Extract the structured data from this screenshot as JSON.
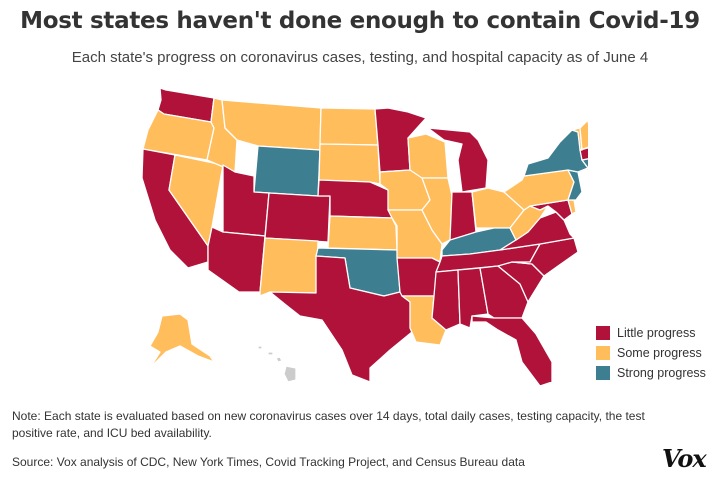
{
  "title": "Most states haven't done enough to contain Covid-19",
  "subtitle": "Each state's progress on coronavirus cases, testing, and hospital capacity as of June 4",
  "legend": [
    {
      "key": "little",
      "label": "Little progress",
      "color": "#b0123a"
    },
    {
      "key": "some",
      "label": "Some progress",
      "color": "#ffbd5c"
    },
    {
      "key": "strong",
      "label": "Strong progress",
      "color": "#3d7f91"
    }
  ],
  "colors": {
    "little": "#b0123a",
    "some": "#ffbd5c",
    "strong": "#3d7f91",
    "nodata": "#cccccc"
  },
  "states": {
    "WA": "little",
    "OR": "some",
    "CA": "little",
    "NV": "some",
    "ID": "some",
    "MT": "some",
    "WY": "strong",
    "UT": "little",
    "AZ": "little",
    "CO": "little",
    "NM": "some",
    "ND": "some",
    "SD": "some",
    "NE": "little",
    "KS": "some",
    "OK": "strong",
    "TX": "little",
    "MN": "little",
    "IA": "some",
    "MO": "some",
    "AR": "little",
    "LA": "some",
    "WI": "some",
    "IL": "some",
    "MI": "little",
    "IN": "little",
    "OH": "some",
    "KY": "strong",
    "TN": "little",
    "MS": "little",
    "AL": "little",
    "GA": "little",
    "FL": "little",
    "SC": "little",
    "NC": "little",
    "VA": "little",
    "WV": "some",
    "MD": "little",
    "DE": "some",
    "PA": "some",
    "NJ": "strong",
    "NY": "strong",
    "CT": "strong",
    "RI": "some",
    "MA": "little",
    "VT": "some",
    "NH": "some",
    "ME": "some",
    "AK": "some",
    "HI": "nodata"
  },
  "note": "Note: Each state is evaluated based on new coronavirus cases over 14 days, total daily cases, testing capacity, the test positive rate, and ICU bed availability.",
  "source": "Source: Vox analysis of CDC, New York Times, Covid Tracking Project, and Census Bureau data",
  "logo": "Vox"
}
